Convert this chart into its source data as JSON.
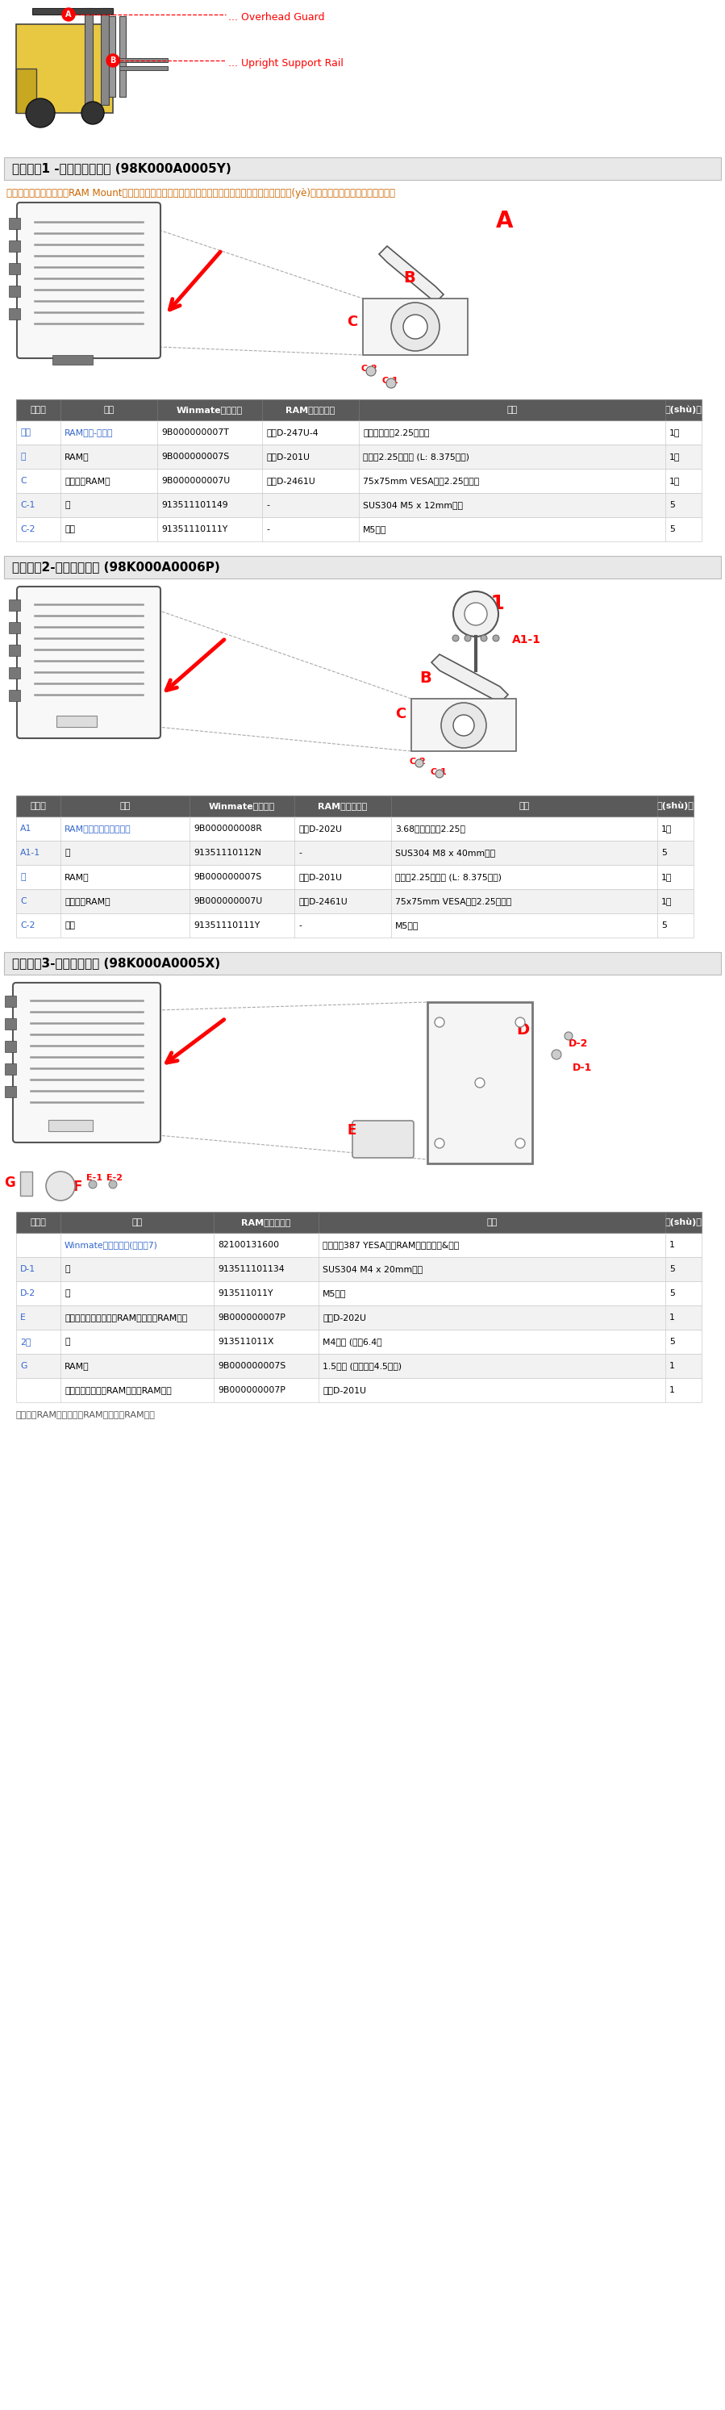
{
  "bg_color": "#ffffff",
  "section1_title": "安裝套件1 -無鉆孔解決方案 (98K000A0005Y)",
  "section2_title": "安裝套件2-鉆孔解決方案 (98K000A0006P)",
  "section3_title": "安裝套件3-硬盤安裝安裝 (98K000A0005X)",
  "section1_desc": "該設備的對接旨在安裝到RAM Mount解決方案，該解決方案提供了各種類型的安裝類型，以適合任何工業(yè)用途或車輛。每個安裝套件包括：",
  "header_bg": "#5a5a5a",
  "header_text": "#ffffff",
  "row_bg1": "#ffffff",
  "row_bg2": "#f2f2f2",
  "section_header_bg": "#e8e8e8",
  "red_color": "#cc0000",
  "blue_color": "#3366cc",
  "orange_color": "#cc6600",
  "table1_headers": [
    "沒有。",
    "零件",
    "Winmate零件編號",
    "RAM安裝件編號",
    "描述",
    "數(shù)量"
  ],
  "table1_col_widths": [
    55,
    120,
    130,
    120,
    380,
    45
  ],
  "table1_rows": [
    [
      "一種",
      "RAM夾座-叉車上",
      "9B000000007T",
      "內存D-247U-4",
      "夾具底座帶有2.25英寸球",
      "1個"
    ],
    [
      "乙",
      "RAM臂",
      "9B000000007S",
      "內存D-201U",
      "臂用于2.25英寸球 (L: 8.375英寸)",
      "1個"
    ],
    [
      "C",
      "設備側的RAM球",
      "9B000000007U",
      "內存D-2461U",
      "75x75mm VESA，帶2.25英寸球",
      "1個"
    ],
    [
      "C-1",
      "矸",
      "913511101149",
      "-",
      "SUS304 M5 x 12mm螺絲",
      "5"
    ],
    [
      "C-2",
      "墊圈",
      "91351110111Y",
      "-",
      "M5墊圈",
      "5"
    ]
  ],
  "table2_headers": [
    "沒有。",
    "零件",
    "Winmate零件編號",
    "RAM安裝件編號",
    "描述",
    "數(shù)量"
  ],
  "table2_col_widths": [
    55,
    160,
    130,
    120,
    330,
    45
  ],
  "table2_rows": [
    [
      "A1",
      "RAM圓形底座支架叉車上",
      "9B000000008R",
      "內存D-202U",
      "3.68圓形底座和2.25球",
      "1個"
    ],
    [
      "A1-1",
      "矸",
      "91351110112N",
      "-",
      "SUS304 M8 x 40mm螺絲",
      "5"
    ],
    [
      "乙",
      "RAM臂",
      "9B000000007S",
      "內存D-201U",
      "臂用于2.25英寸球 (L: 8.375英寸)",
      "1個"
    ],
    [
      "C",
      "設備側的RAM球",
      "9B000000007U",
      "內存D-2461U",
      "75x75mm VESA，帶2.25英寸球",
      "1個"
    ],
    [
      "C-2",
      "墊圈",
      "91351110111Y",
      "-",
      "M5墊圈",
      "5"
    ]
  ],
  "table3_headers": [
    "立札。",
    "零件",
    "RAM安裝件編號",
    "描述",
    "數(shù)量"
  ],
  "table3_col_widths": [
    55,
    190,
    130,
    430,
    45
  ],
  "table3_rows": [
    [
      "",
      "Winmate組合安裝板(設備側7)",
      "82100131600",
      "設備單上387 YESA，配RAM組合安裝板&板。",
      "1"
    ],
    [
      "D-1",
      "矸",
      "913511101134",
      "SUS304 M4 x 20mm螺絲",
      "5"
    ],
    [
      "D-2",
      "矸",
      "913511011Y",
      "M5墊圈",
      "5"
    ],
    [
      "E",
      "硬盤遮蓋組裝組件包括RAM組件上面RAM組件",
      "9B000000007P",
      "內存D-202U",
      "1"
    ],
    [
      "2號",
      "矸",
      "913511011X",
      "M4螺絲 (長：6.4）",
      "5"
    ],
    [
      "G",
      "RAM臂",
      "9B000000007S",
      "1.5寸臂 (含接頭，4.5英寸)",
      "1"
    ],
    [
      "",
      "組合遮蓋組裝包括RAM組件的RAM組件",
      "9B000000007P",
      "內存D-201U",
      "1"
    ]
  ],
  "note3": "以上清單RAM安裝組件與RAM安裝套件RAM完整"
}
